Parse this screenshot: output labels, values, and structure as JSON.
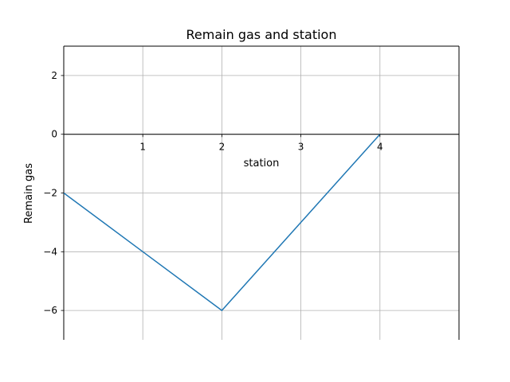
{
  "chart_data": {
    "type": "line",
    "title": "Remain gas and station",
    "xlabel": "station",
    "ylabel": "Remain gas",
    "xlim": [
      0,
      5
    ],
    "ylim": [
      -7,
      3
    ],
    "x_ticks": [
      1,
      2,
      3,
      4
    ],
    "y_ticks": [
      2,
      0,
      -2,
      -4,
      -6
    ],
    "x_tick_labels": [
      "1",
      "2",
      "3",
      "4"
    ],
    "y_tick_labels": [
      "2",
      "0",
      "−2",
      "−4",
      "−6"
    ],
    "grid": true,
    "series": [
      {
        "x": [
          0,
          1,
          2,
          3,
          4
        ],
        "y": [
          -2,
          -4,
          -6,
          -3,
          0
        ],
        "color": "#1f77b4"
      }
    ]
  }
}
